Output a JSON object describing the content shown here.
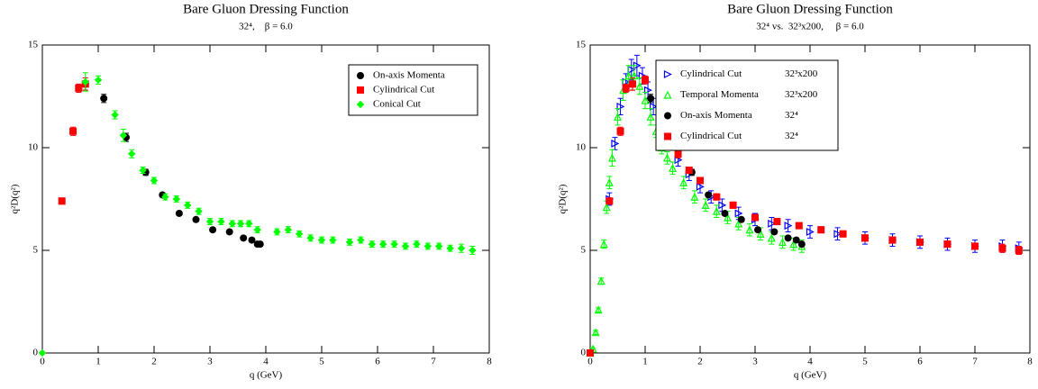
{
  "chart_data": [
    {
      "type": "scatter",
      "title": "Bare Gluon Dressing Function",
      "subtitle": "32⁴,    β = 6.0",
      "x_label": "q (GeV)",
      "y_label": "q²D(q²)",
      "xlim": [
        0,
        8
      ],
      "ylim": [
        0,
        15
      ],
      "xticks": [
        0,
        1,
        2,
        3,
        4,
        5,
        6,
        7,
        8
      ],
      "yticks": [
        0,
        5,
        10,
        15
      ],
      "legend": "upper right",
      "series": [
        {
          "name": "On-axis Momenta",
          "color": "#000000",
          "marker": "circle",
          "x": [
            0.77,
            1.1,
            1.5,
            1.85,
            2.15,
            2.45,
            2.75,
            3.05,
            3.35,
            3.6,
            3.75,
            3.85,
            3.9
          ],
          "values": [
            13.1,
            12.4,
            10.5,
            8.8,
            7.7,
            6.8,
            6.5,
            6.0,
            5.9,
            5.6,
            5.5,
            5.3,
            5.3
          ],
          "errors": [
            0.3,
            0.2,
            0.2,
            0.15,
            0.1,
            0.1,
            0.1,
            0.1,
            0.1,
            0.1,
            0.1,
            0.1,
            0.1
          ]
        },
        {
          "name": "Cylindrical Cut",
          "color": "#ff0000",
          "marker": "square",
          "x": [
            0.35,
            0.55,
            0.65,
            0.77
          ],
          "values": [
            7.4,
            10.8,
            12.9,
            13.1
          ],
          "errors": [
            0.15,
            0.2,
            0.2,
            0.3
          ]
        },
        {
          "name": "Conical Cut",
          "color": "#00ff00",
          "marker": "diamond",
          "x": [
            0,
            0.77,
            1.0,
            1.3,
            1.45,
            1.6,
            1.8,
            2.0,
            2.2,
            2.4,
            2.6,
            2.8,
            3.0,
            3.2,
            3.4,
            3.55,
            3.7,
            3.85,
            4.2,
            4.4,
            4.6,
            4.8,
            5.0,
            5.2,
            5.5,
            5.7,
            5.9,
            6.1,
            6.3,
            6.5,
            6.7,
            6.9,
            7.1,
            7.3,
            7.5,
            7.7
          ],
          "values": [
            0,
            13.2,
            13.3,
            11.6,
            10.6,
            9.7,
            8.9,
            8.4,
            7.6,
            7.5,
            7.2,
            6.9,
            6.4,
            6.4,
            6.3,
            6.3,
            6.3,
            6.0,
            5.9,
            6.0,
            5.8,
            5.6,
            5.5,
            5.5,
            5.4,
            5.5,
            5.3,
            5.3,
            5.3,
            5.2,
            5.3,
            5.2,
            5.2,
            5.1,
            5.1,
            5.0
          ],
          "errors": [
            0,
            0.45,
            0.2,
            0.2,
            0.3,
            0.2,
            0.15,
            0.15,
            0.15,
            0.15,
            0.15,
            0.15,
            0.15,
            0.15,
            0.15,
            0.15,
            0.15,
            0.15,
            0.15,
            0.15,
            0.15,
            0.15,
            0.15,
            0.15,
            0.15,
            0.15,
            0.15,
            0.15,
            0.15,
            0.15,
            0.15,
            0.15,
            0.15,
            0.15,
            0.2,
            0.2
          ]
        }
      ]
    },
    {
      "type": "scatter",
      "title": "Bare Gluon Dressing Function",
      "subtitle": "32⁴ vs.  32³x200,     β = 6.0",
      "x_label": "q (GeV)",
      "y_label": "q²D(q²)",
      "xlim": [
        0,
        8
      ],
      "ylim": [
        0,
        15
      ],
      "xticks": [
        0,
        1,
        2,
        3,
        4,
        5,
        6,
        7,
        8
      ],
      "yticks": [
        0,
        5,
        10,
        15
      ],
      "legend": "upper left",
      "series": [
        {
          "name": "Cylindrical Cut",
          "lattice": "32³x200",
          "color": "#0000ff",
          "marker": "triangle-right",
          "x": [
            0.35,
            0.45,
            0.55,
            0.65,
            0.75,
            0.85,
            0.95,
            1.05,
            1.15,
            1.3,
            1.45,
            1.6,
            1.8,
            2.0,
            2.2,
            2.4,
            2.7,
            3.0,
            3.3,
            3.6,
            4.0,
            4.5,
            5.0,
            5.5,
            6.0,
            6.5,
            7.0,
            7.5,
            7.8
          ],
          "values": [
            7.5,
            10.2,
            12.0,
            13.2,
            13.8,
            14.0,
            13.5,
            12.8,
            12.0,
            11.0,
            10.2,
            9.4,
            8.7,
            8.1,
            7.6,
            7.2,
            6.8,
            6.5,
            6.3,
            6.2,
            5.9,
            5.8,
            5.6,
            5.5,
            5.4,
            5.3,
            5.2,
            5.2,
            5.1
          ],
          "errors": [
            0.3,
            0.3,
            0.4,
            0.4,
            0.5,
            0.5,
            0.4,
            0.4,
            0.4,
            0.3,
            0.3,
            0.3,
            0.3,
            0.3,
            0.3,
            0.3,
            0.3,
            0.3,
            0.3,
            0.3,
            0.3,
            0.3,
            0.3,
            0.3,
            0.3,
            0.3,
            0.3,
            0.3,
            0.3
          ]
        },
        {
          "name": "Temporal Momenta",
          "lattice": "32³x200",
          "color": "#00ff00",
          "marker": "triangle-up",
          "x": [
            0,
            0.05,
            0.1,
            0.15,
            0.2,
            0.25,
            0.3,
            0.35,
            0.4,
            0.5,
            0.6,
            0.7,
            0.8,
            0.9,
            1.0,
            1.1,
            1.2,
            1.3,
            1.4,
            1.5,
            1.7,
            1.9,
            2.1,
            2.3,
            2.5,
            2.7,
            2.9,
            3.1,
            3.3,
            3.5,
            3.7,
            3.85
          ],
          "values": [
            0,
            0.2,
            1.0,
            2.1,
            3.5,
            5.3,
            7.1,
            8.3,
            9.5,
            11.5,
            12.8,
            13.5,
            13.5,
            13.0,
            12.3,
            11.5,
            10.8,
            10.0,
            9.5,
            9.0,
            8.3,
            7.6,
            7.2,
            6.9,
            6.6,
            6.3,
            6.0,
            5.8,
            5.6,
            5.4,
            5.3,
            5.2
          ],
          "errors": [
            0.05,
            0.05,
            0.1,
            0.1,
            0.15,
            0.2,
            0.3,
            0.3,
            0.4,
            0.4,
            0.5,
            0.5,
            0.5,
            0.4,
            0.4,
            0.4,
            0.3,
            0.3,
            0.3,
            0.3,
            0.3,
            0.3,
            0.3,
            0.3,
            0.3,
            0.3,
            0.3,
            0.3,
            0.3,
            0.3,
            0.3,
            0.3
          ]
        },
        {
          "name": "On-axis Momenta",
          "lattice": "32⁴",
          "color": "#000000",
          "marker": "circle",
          "x": [
            0.77,
            1.1,
            1.5,
            1.85,
            2.15,
            2.45,
            2.75,
            3.05,
            3.35,
            3.6,
            3.75,
            3.85
          ],
          "values": [
            13.1,
            12.4,
            10.5,
            8.8,
            7.7,
            6.8,
            6.5,
            6.0,
            5.9,
            5.6,
            5.5,
            5.3
          ],
          "errors": [
            0.3,
            0.2,
            0.2,
            0.15,
            0.1,
            0.1,
            0.1,
            0.1,
            0.1,
            0.1,
            0.1,
            0.1
          ]
        },
        {
          "name": "Cylindrical Cut",
          "lattice": "32⁴",
          "color": "#ff0000",
          "marker": "square",
          "x": [
            0,
            0.35,
            0.55,
            0.65,
            0.77,
            1.0,
            1.3,
            1.6,
            1.8,
            2.0,
            2.3,
            2.6,
            3.0,
            3.4,
            3.8,
            4.2,
            4.6,
            5.0,
            5.5,
            6.0,
            6.5,
            7.0,
            7.5,
            7.8
          ],
          "values": [
            0,
            7.4,
            10.8,
            12.9,
            13.1,
            13.3,
            11.6,
            9.7,
            8.9,
            8.4,
            7.6,
            7.2,
            6.6,
            6.4,
            6.2,
            6.0,
            5.8,
            5.6,
            5.5,
            5.4,
            5.3,
            5.2,
            5.1,
            5.0
          ],
          "errors": [
            0,
            0.15,
            0.2,
            0.2,
            0.3,
            0.2,
            0.2,
            0.2,
            0.15,
            0.15,
            0.15,
            0.15,
            0.15,
            0.15,
            0.15,
            0.15,
            0.15,
            0.15,
            0.15,
            0.15,
            0.15,
            0.15,
            0.2,
            0.2
          ]
        }
      ]
    }
  ]
}
